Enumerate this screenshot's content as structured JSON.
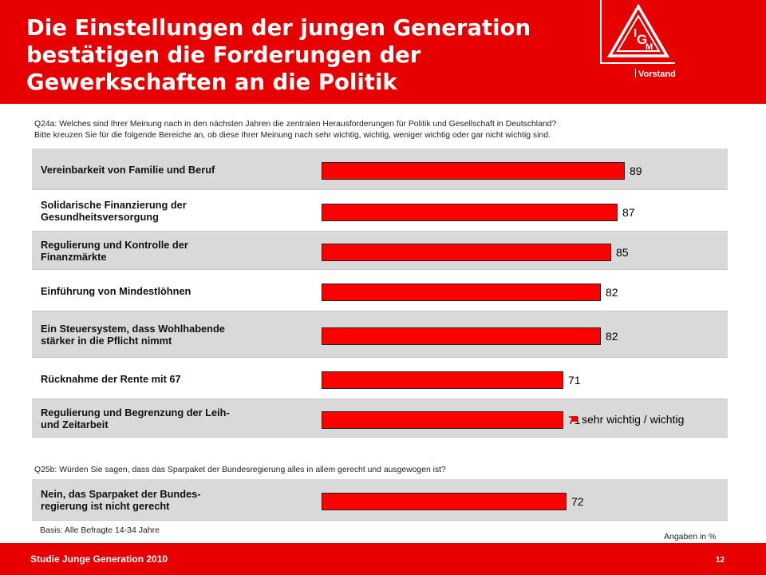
{
  "header": {
    "title_lines": [
      "Die Einstellungen der jungen Generation",
      "bestätigen die Forderungen der",
      "Gewerkschaften an die Politik"
    ],
    "org_label": "Vorstand",
    "logo_text": "IG M"
  },
  "q24": {
    "line1": "Q24a:  Welches sind Ihrer Meinung nach in den nächsten Jahren die zentralen Herausforderungen für Politik und Gesellschaft in Deutschland?",
    "line2": "Bitte kreuzen  Sie für die folgende Bereiche an, ob diese Ihrer Meinung nach sehr wichtig, wichtig, weniger wichtig oder gar nicht wichtig sind."
  },
  "q25": {
    "line1": "Q25b:  Würden Sie sagen, dass das Sparpaket der Bundesregierung alles in allem gerecht und ausgewogen ist?"
  },
  "chart_data": [
    {
      "type": "bar",
      "orientation": "horizontal",
      "title": "Q24a",
      "categories": [
        [
          "Vereinbarkeit von Familie und Beruf"
        ],
        [
          "Solidarische Finanzierung der",
          "Gesundheitsversorgung"
        ],
        [
          "Regulierung und Kontrolle der",
          "Finanzmärkte"
        ],
        [
          "Einführung von Mindestlöhnen"
        ],
        [
          "Ein Steuersystem, dass Wohlhabende",
          "stärker in die Pflicht nimmt"
        ],
        [
          "Rücknahme der Rente mit 67"
        ],
        [
          "Regulierung und Begrenzung der Leih-",
          "und Zeitarbeit"
        ]
      ],
      "series": [
        {
          "name": "sehr wichtig / wichtig",
          "values": [
            89,
            87,
            85,
            82,
            82,
            71,
            71
          ]
        }
      ],
      "xlim": [
        0,
        100
      ],
      "legend": "sehr wichtig / wichtig",
      "legend_position": "right of last bar",
      "grid": false
    },
    {
      "type": "bar",
      "orientation": "horizontal",
      "title": "Q25b",
      "categories": [
        [
          "Nein, das Sparpaket der Bundes-",
          "regierung ist nicht gerecht"
        ]
      ],
      "series": [
        {
          "name": "sehr wichtig / wichtig",
          "values": [
            72
          ]
        }
      ],
      "xlim": [
        0,
        100
      ],
      "grid": false
    }
  ],
  "notes": {
    "basis": "Basis: Alle Befragte 14-34 Jahre",
    "unit": "Angaben in %"
  },
  "footer": {
    "study": "Studie Junge Generation 2010",
    "page": "12"
  },
  "colors": {
    "brand_red": "#e60000",
    "bar_red": "#ff0000",
    "row_shade": "#d9d9d9"
  }
}
